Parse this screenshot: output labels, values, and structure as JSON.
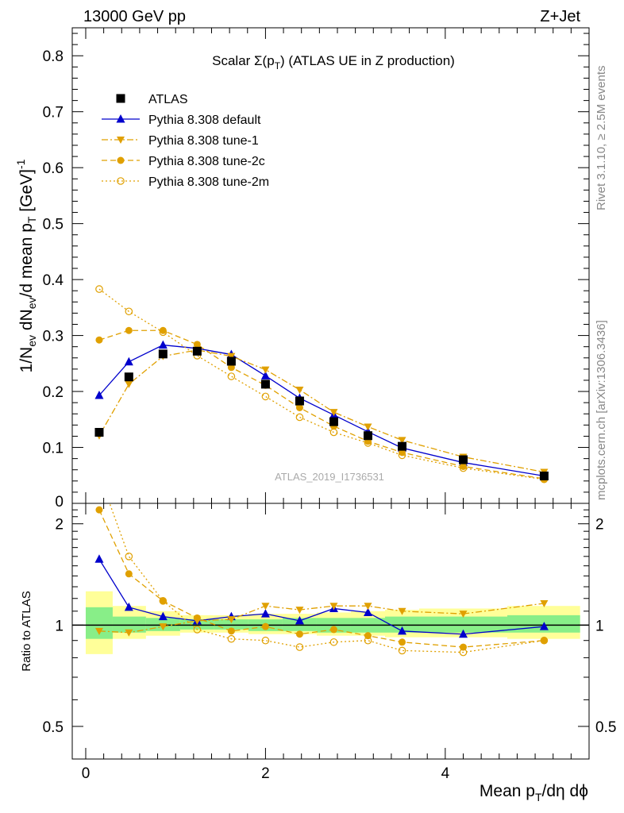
{
  "header": {
    "left": "13000 GeV pp",
    "right": "Z+Jet"
  },
  "side_labels": {
    "top": "Rivet 3.1.10, ≥ 2.5M events",
    "bottom": "mcplots.cern.ch [arXiv:1306.3436]"
  },
  "chart_data": [
    {
      "type": "line",
      "title": "Scalar Σ(p_T) (ATLAS UE in Z production)",
      "ylabel": "1/N_ev dN_ev/d mean p_T [GeV]^-1",
      "watermark": "ATLAS_2019_I1736531",
      "xlim": [
        -0.15,
        5.6
      ],
      "ylim": [
        0,
        0.85
      ],
      "yticks": [
        0.1,
        0.2,
        0.3,
        0.4,
        0.5,
        0.6,
        0.7,
        0.8
      ],
      "ytick_labels": [
        "0.1",
        "0.2",
        "0.3",
        "0.4",
        "0.5",
        "0.6",
        "0.7",
        "0.8"
      ],
      "partial_tick_label": "0",
      "legend_position": "top-left",
      "x": [
        0.15,
        0.48,
        0.86,
        1.24,
        1.62,
        2.0,
        2.38,
        2.76,
        3.14,
        3.52,
        4.2,
        5.1
      ],
      "series": [
        {
          "name": "ATLAS",
          "style": "data",
          "color": "#000000",
          "values": [
            0.127,
            0.226,
            0.267,
            0.272,
            0.254,
            0.213,
            0.183,
            0.146,
            0.121,
            0.102,
            0.078,
            0.049
          ]
        },
        {
          "name": "Pythia 8.308 default",
          "style": "solid",
          "marker": "triangle-up",
          "color": "#0000cc",
          "values": [
            0.193,
            0.253,
            0.283,
            0.277,
            0.266,
            0.228,
            0.188,
            0.158,
            0.128,
            0.099,
            0.073,
            0.049
          ]
        },
        {
          "name": "Pythia 8.308 tune-1",
          "style": "dashdot",
          "marker": "triangle-down",
          "color": "#e0a000",
          "values": [
            0.121,
            0.213,
            0.263,
            0.274,
            0.263,
            0.239,
            0.203,
            0.163,
            0.137,
            0.113,
            0.083,
            0.056
          ]
        },
        {
          "name": "Pythia 8.308 tune-2c",
          "style": "dashed",
          "marker": "circle-filled",
          "color": "#e0a000",
          "values": [
            0.292,
            0.309,
            0.309,
            0.284,
            0.243,
            0.211,
            0.171,
            0.138,
            0.111,
            0.091,
            0.066,
            0.044
          ]
        },
        {
          "name": "Pythia 8.308 tune-2m",
          "style": "dotted",
          "marker": "circle-open",
          "color": "#e0a000",
          "values": [
            0.383,
            0.343,
            0.306,
            0.264,
            0.227,
            0.191,
            0.154,
            0.127,
            0.108,
            0.086,
            0.063,
            0.043
          ]
        }
      ]
    },
    {
      "type": "line",
      "ylabel": "Ratio to ATLAS",
      "xlabel": "Mean p_T/dη dϕ",
      "xlim": [
        -0.15,
        5.6
      ],
      "ylim": [
        0.4,
        2.3
      ],
      "y_scale": "log",
      "xticks": [
        0,
        2,
        4
      ],
      "xtick_labels": [
        "0",
        "2",
        "4"
      ],
      "yticks": [
        0.5,
        1,
        2
      ],
      "ytick_labels": [
        "0.5",
        "1",
        "2"
      ],
      "x": [
        0.15,
        0.48,
        0.86,
        1.24,
        1.62,
        2.0,
        2.38,
        2.76,
        3.14,
        3.52,
        4.2,
        5.1
      ],
      "bands": {
        "bin_edges": [
          0.0,
          0.3,
          0.67,
          1.05,
          1.43,
          1.81,
          2.19,
          2.57,
          2.95,
          3.33,
          3.71,
          4.69,
          5.5
        ],
        "inner": [
          [
            0.91,
            1.13
          ],
          [
            0.95,
            1.06
          ],
          [
            0.96,
            1.05
          ],
          [
            0.97,
            1.04
          ],
          [
            0.97,
            1.04
          ],
          [
            0.96,
            1.04
          ],
          [
            0.96,
            1.05
          ],
          [
            0.95,
            1.05
          ],
          [
            0.95,
            1.05
          ],
          [
            0.95,
            1.06
          ],
          [
            0.95,
            1.06
          ],
          [
            0.95,
            1.07
          ]
        ],
        "outer": [
          [
            0.82,
            1.26
          ],
          [
            0.91,
            1.14
          ],
          [
            0.93,
            1.1
          ],
          [
            0.95,
            1.07
          ],
          [
            0.95,
            1.07
          ],
          [
            0.94,
            1.08
          ],
          [
            0.94,
            1.08
          ],
          [
            0.93,
            1.09
          ],
          [
            0.93,
            1.1
          ],
          [
            0.92,
            1.11
          ],
          [
            0.92,
            1.12
          ],
          [
            0.91,
            1.14
          ]
        ],
        "inner_color": "#88ee88",
        "outer_color": "#ffff99"
      },
      "series": [
        {
          "name": "Pythia 8.308 default",
          "style": "solid",
          "marker": "triangle-up",
          "color": "#0000cc",
          "values": [
            1.57,
            1.13,
            1.06,
            1.03,
            1.06,
            1.08,
            1.03,
            1.12,
            1.09,
            0.96,
            0.94,
            0.99
          ]
        },
        {
          "name": "Pythia 8.308 tune-1",
          "style": "dashdot",
          "marker": "triangle-down",
          "color": "#e0a000",
          "values": [
            0.96,
            0.95,
            0.99,
            1.03,
            1.04,
            1.14,
            1.11,
            1.14,
            1.14,
            1.1,
            1.08,
            1.16
          ]
        },
        {
          "name": "Pythia 8.308 tune-2c",
          "style": "dashed",
          "marker": "circle-filled",
          "color": "#e0a000",
          "values": [
            2.2,
            1.42,
            1.18,
            1.05,
            0.96,
            0.99,
            0.94,
            0.97,
            0.93,
            0.89,
            0.86,
            0.9
          ]
        },
        {
          "name": "Pythia 8.308 tune-2m",
          "style": "dotted",
          "marker": "circle-open",
          "color": "#e0a000",
          "values": [
            2.8,
            1.6,
            1.18,
            0.97,
            0.91,
            0.9,
            0.86,
            0.89,
            0.9,
            0.84,
            0.83,
            0.9
          ]
        }
      ]
    }
  ]
}
